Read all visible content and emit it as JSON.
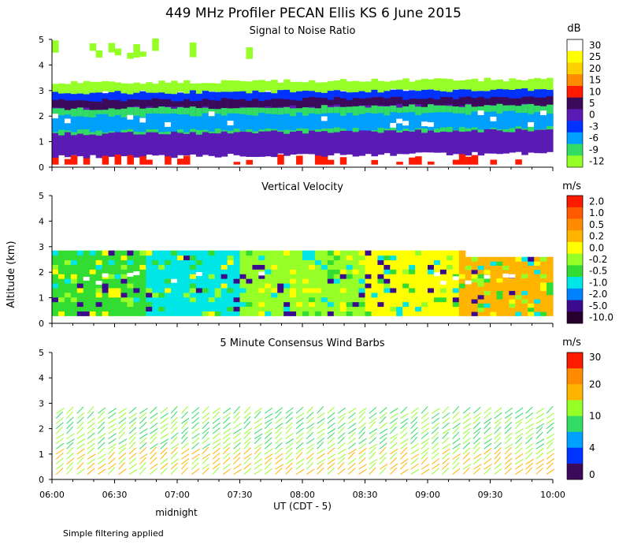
{
  "title": "449 MHz Profiler PECAN Ellis KS  6 June 2015",
  "ylabel": "Altitude (km)",
  "xlabel": "UT  (CDT - 5)",
  "x_ticks": [
    "06:00",
    "06:30",
    "07:00",
    "07:30",
    "08:00",
    "08:30",
    "09:00",
    "09:30",
    "10:00"
  ],
  "midnight_label": "midnight",
  "footer_note": "Simple filtering applied",
  "chart_data": [
    {
      "type": "heatmap",
      "title": "Signal to Noise Ratio",
      "unit": "dB",
      "xlim": [
        "06:00",
        "10:00"
      ],
      "ylim": [
        0,
        5
      ],
      "y_ticks": [
        0,
        1,
        2,
        3,
        4,
        5
      ],
      "colorbar": {
        "labels": [
          "30",
          "25",
          "20",
          "15",
          "10",
          "5",
          "0",
          "-3",
          "-6",
          "-9",
          "-12"
        ],
        "colors": [
          "#ffffff",
          "#ffff00",
          "#ffd000",
          "#ff8c00",
          "#ff1a00",
          "#3c0a5a",
          "#5a1ab4",
          "#0033ff",
          "#00a0ff",
          "#32dc64",
          "#96ff28"
        ]
      },
      "layers": [
        {
          "name": "low-red-cells",
          "y0": 0.1,
          "y1": 0.6,
          "color": "#ff1a00"
        },
        {
          "name": "purple-base",
          "y0": 0.4,
          "y1": 2.8,
          "color": "#5a1ab4"
        },
        {
          "name": "green-band",
          "y0": 1.3,
          "y1": 2.3,
          "color": "#32dc64"
        },
        {
          "name": "cyan-band",
          "y0": 1.4,
          "y1": 2.0,
          "color": "#00a0ff"
        },
        {
          "name": "dark-layer",
          "y0": 2.3,
          "y1": 2.7,
          "color": "#3c0a5a"
        },
        {
          "name": "blue-edge",
          "y0": 2.6,
          "y1": 2.95,
          "color": "#0033ff"
        },
        {
          "name": "top-green",
          "y0": 2.9,
          "y1": 3.3,
          "color": "#96ff28"
        },
        {
          "name": "upper-patches",
          "y0": 4.2,
          "y1": 5.0,
          "color": "#96ff28"
        }
      ]
    },
    {
      "type": "heatmap",
      "title": "Vertical Velocity",
      "unit": "m/s",
      "xlim": [
        "06:00",
        "10:00"
      ],
      "ylim": [
        0,
        5
      ],
      "y_ticks": [
        0,
        1,
        2,
        3,
        4,
        5
      ],
      "colorbar": {
        "labels": [
          "2.0",
          "1.0",
          "0.5",
          "0.2",
          "0.0",
          "-0.2",
          "-0.5",
          "-1.0",
          "-2.0",
          "-5.0",
          "-10.0"
        ],
        "colors": [
          "#ff1a00",
          "#ff5a00",
          "#ff8c00",
          "#ffb400",
          "#ffff00",
          "#96ff28",
          "#32dc32",
          "#00e6e6",
          "#0082ff",
          "#3c0a8c",
          "#28002d"
        ]
      },
      "segments": [
        {
          "x0": "06:00",
          "x1": "06:45",
          "color": "#32dc32"
        },
        {
          "x0": "06:45",
          "x1": "07:30",
          "color": "#00e6e6"
        },
        {
          "x0": "07:30",
          "x1": "08:30",
          "color": "#96ff28"
        },
        {
          "x0": "08:30",
          "x1": "09:15",
          "color": "#ffff00"
        },
        {
          "x0": "09:15",
          "x1": "10:00",
          "color": "#ffb400"
        }
      ]
    },
    {
      "type": "scatter",
      "title": "5 Minute Consensus Wind Barbs",
      "unit": "m/s",
      "xlim": [
        "06:00",
        "10:00"
      ],
      "ylim": [
        0,
        5
      ],
      "y_ticks": [
        0,
        1,
        2,
        3,
        4,
        5
      ],
      "colorbar": {
        "labels": [
          "30",
          "20",
          "10",
          "4",
          "0"
        ],
        "colors": [
          "#ff1a00",
          "#ff8c00",
          "#ffb400",
          "#96ff28",
          "#32dc64",
          "#00a0ff",
          "#0033ff",
          "#3c0a5a"
        ]
      },
      "dominant_speed_ms": 12,
      "max_altitude_km": 2.7
    }
  ]
}
